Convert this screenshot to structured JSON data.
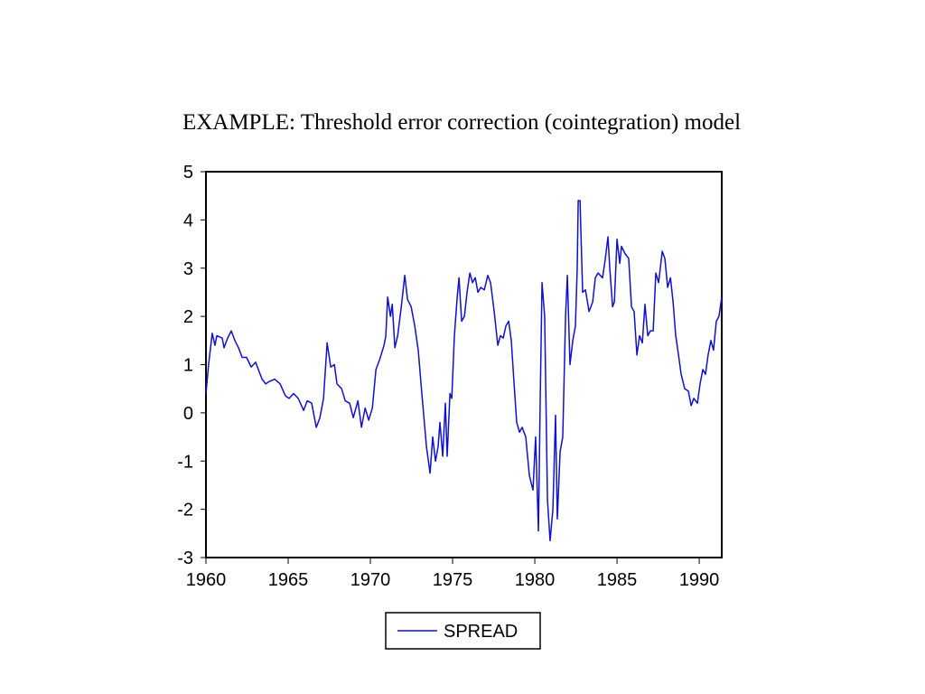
{
  "chart_data": {
    "type": "line",
    "title": "EXAMPLE: Threshold error correction (cointegration) model",
    "x": [
      1960.0,
      1960.16,
      1960.38,
      1960.55,
      1960.66,
      1960.99,
      1961.1,
      1961.32,
      1961.54,
      1961.76,
      1961.98,
      1962.2,
      1962.47,
      1962.75,
      1963.02,
      1963.41,
      1963.63,
      1963.85,
      1964.18,
      1964.51,
      1964.84,
      1965.06,
      1965.33,
      1965.61,
      1965.94,
      1966.16,
      1966.43,
      1966.71,
      1966.93,
      1967.15,
      1967.37,
      1967.59,
      1967.81,
      1967.97,
      1968.25,
      1968.47,
      1968.74,
      1968.96,
      1969.24,
      1969.46,
      1969.68,
      1969.9,
      1970.12,
      1970.34,
      1970.56,
      1970.83,
      1970.94,
      1971.05,
      1971.22,
      1971.33,
      1971.49,
      1971.66,
      1971.88,
      1972.09,
      1972.26,
      1972.48,
      1972.7,
      1972.91,
      1973.13,
      1973.41,
      1973.63,
      1973.79,
      1973.96,
      1974.12,
      1974.23,
      1974.4,
      1974.56,
      1974.67,
      1974.84,
      1974.95,
      1975.11,
      1975.28,
      1975.39,
      1975.55,
      1975.72,
      1975.88,
      1976.05,
      1976.21,
      1976.38,
      1976.54,
      1976.71,
      1976.93,
      1977.14,
      1977.31,
      1977.53,
      1977.75,
      1977.91,
      1978.08,
      1978.24,
      1978.41,
      1978.57,
      1978.74,
      1978.9,
      1979.07,
      1979.23,
      1979.45,
      1979.67,
      1979.89,
      1980.05,
      1980.22,
      1980.33,
      1980.44,
      1980.6,
      1980.77,
      1980.93,
      1981.1,
      1981.26,
      1981.37,
      1981.54,
      1981.7,
      1981.87,
      1981.98,
      1982.14,
      1982.31,
      1982.47,
      1982.58,
      1982.64,
      1982.75,
      1982.91,
      1983.08,
      1983.3,
      1983.52,
      1983.68,
      1983.85,
      1984.12,
      1984.29,
      1984.45,
      1984.56,
      1984.73,
      1984.84,
      1985.0,
      1985.17,
      1985.27,
      1985.49,
      1985.71,
      1985.88,
      1986.04,
      1986.21,
      1986.37,
      1986.54,
      1986.7,
      1986.87,
      1987.03,
      1987.2,
      1987.36,
      1987.53,
      1987.75,
      1987.91,
      1988.08,
      1988.25,
      1988.41,
      1988.57,
      1988.74,
      1988.9,
      1989.12,
      1989.34,
      1989.51,
      1989.67,
      1989.89,
      1990.05,
      1990.22,
      1990.38,
      1990.54,
      1990.71,
      1990.87,
      1991.04,
      1991.2,
      1991.37
    ],
    "series": [
      {
        "name": "SPREAD",
        "color": "#1010d0",
        "values": [
          0.4,
          1.0,
          1.65,
          1.4,
          1.6,
          1.55,
          1.35,
          1.55,
          1.7,
          1.5,
          1.35,
          1.15,
          1.15,
          0.95,
          1.05,
          0.7,
          0.6,
          0.65,
          0.7,
          0.6,
          0.35,
          0.3,
          0.4,
          0.3,
          0.05,
          0.25,
          0.2,
          -0.3,
          -0.1,
          0.3,
          1.45,
          0.95,
          1.0,
          0.6,
          0.5,
          0.25,
          0.2,
          -0.1,
          0.25,
          -0.3,
          0.1,
          -0.15,
          0.1,
          0.9,
          1.1,
          1.4,
          1.6,
          2.4,
          2.0,
          2.25,
          1.35,
          1.6,
          2.2,
          2.85,
          2.35,
          2.2,
          1.8,
          1.3,
          0.4,
          -0.7,
          -1.25,
          -0.5,
          -1.0,
          -0.7,
          -0.2,
          -0.9,
          0.2,
          -0.9,
          0.4,
          0.3,
          1.6,
          2.4,
          2.8,
          1.9,
          2.0,
          2.5,
          2.9,
          2.7,
          2.8,
          2.5,
          2.6,
          2.55,
          2.85,
          2.7,
          2.1,
          1.4,
          1.6,
          1.55,
          1.8,
          1.9,
          1.5,
          0.6,
          -0.2,
          -0.4,
          -0.3,
          -0.5,
          -1.3,
          -1.6,
          -0.5,
          -2.45,
          0.3,
          2.7,
          2.0,
          -1.8,
          -2.65,
          -2.0,
          -0.05,
          -2.2,
          -0.8,
          -0.5,
          2.0,
          2.85,
          1.0,
          1.5,
          1.8,
          3.0,
          4.4,
          4.4,
          2.5,
          2.55,
          2.1,
          2.3,
          2.8,
          2.9,
          2.8,
          3.2,
          3.65,
          3.0,
          2.2,
          2.3,
          3.6,
          3.1,
          3.45,
          3.3,
          3.2,
          2.2,
          2.1,
          1.2,
          1.6,
          1.45,
          2.25,
          1.6,
          1.7,
          1.7,
          2.9,
          2.7,
          3.35,
          3.2,
          2.6,
          2.8,
          2.3,
          1.6,
          1.2,
          0.8,
          0.5,
          0.45,
          0.15,
          0.3,
          0.2,
          0.6,
          0.9,
          0.8,
          1.2,
          1.5,
          1.3,
          1.9,
          2.0,
          2.4
        ]
      }
    ],
    "xlim": [
      1960,
      1991.37
    ],
    "xticks": [
      1960,
      1965,
      1970,
      1975,
      1980,
      1985,
      1990
    ],
    "ylim": [
      -3,
      5
    ],
    "yticks": [
      -3,
      -2,
      -1,
      0,
      1,
      2,
      3,
      4,
      5
    ],
    "legend": "bottom"
  }
}
